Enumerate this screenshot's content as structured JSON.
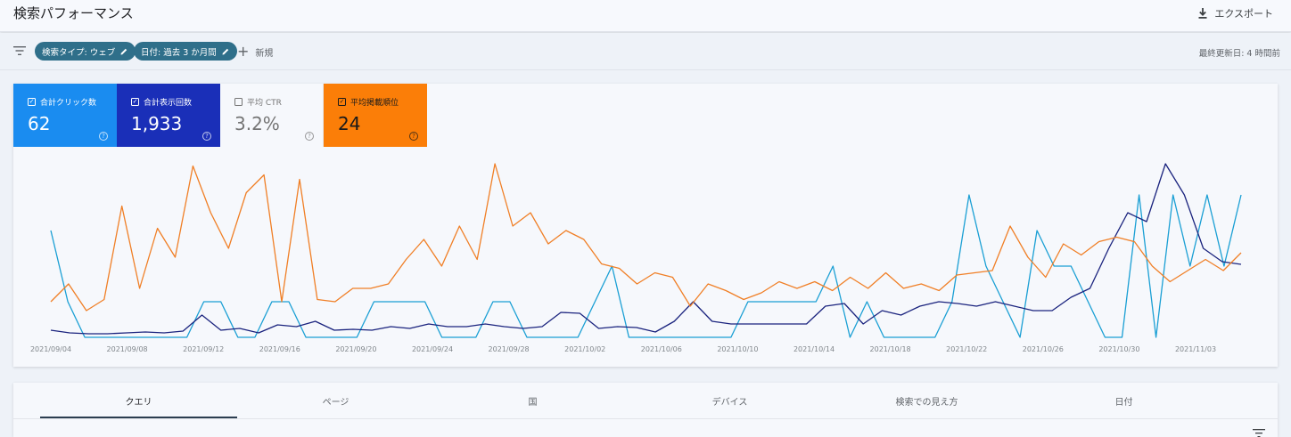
{
  "header": {
    "title": "検索パフォーマンス",
    "export_label": "エクスポート"
  },
  "filters": {
    "type_chip": "検索タイプ: ウェブ",
    "date_chip": "日付: 過去 3 か月間",
    "new_label": "新規",
    "last_updated": "最終更新日: 4 時間前"
  },
  "metrics": [
    {
      "label": "合計クリック数",
      "value": "62",
      "checked": true,
      "color": "#1a8cf0"
    },
    {
      "label": "合計表示回数",
      "value": "1,933",
      "checked": true,
      "color": "#1a2fb8"
    },
    {
      "label": "平均 CTR",
      "value": "3.2%",
      "checked": false,
      "color": "#757575"
    },
    {
      "label": "平均掲載順位",
      "value": "24",
      "checked": true,
      "color": "#fb7e08"
    }
  ],
  "chart_data": {
    "type": "line",
    "x_ticks": [
      "2021/09/04",
      "2021/09/08",
      "2021/09/12",
      "2021/09/16",
      "2021/09/20",
      "2021/09/24",
      "2021/09/28",
      "2021/10/02",
      "2021/10/06",
      "2021/10/10",
      "2021/10/14",
      "2021/10/18",
      "2021/10/22",
      "2021/10/26",
      "2021/10/30",
      "2021/11/03"
    ],
    "series": [
      {
        "color": "#1a9fd4",
        "scale_max": 5,
        "values": [
          3,
          1,
          0,
          0,
          0,
          0,
          0,
          0,
          0,
          1,
          1,
          0,
          0,
          1,
          1,
          0,
          0,
          0,
          0,
          1,
          1,
          1,
          1,
          0,
          0,
          0,
          1,
          1,
          0,
          0,
          0,
          0,
          1,
          2,
          0,
          0,
          0,
          0,
          0,
          0,
          0,
          1,
          1,
          1,
          1,
          1,
          2,
          0,
          1,
          0,
          0,
          0,
          0,
          1,
          4,
          2,
          1,
          0,
          3,
          2,
          2,
          1,
          0,
          0,
          4,
          0,
          4,
          2,
          4,
          2,
          4
        ]
      },
      {
        "color": "#1a237e",
        "scale_max": 200,
        "values": [
          8,
          5,
          4,
          4,
          5,
          6,
          5,
          7,
          25,
          8,
          10,
          5,
          14,
          12,
          18,
          8,
          9,
          8,
          12,
          10,
          15,
          12,
          12,
          15,
          12,
          10,
          12,
          28,
          27,
          10,
          12,
          11,
          6,
          18,
          40,
          18,
          15,
          15,
          15,
          15,
          15,
          35,
          38,
          15,
          30,
          25,
          35,
          40,
          38,
          35,
          40,
          35,
          30,
          30,
          45,
          55,
          100,
          140,
          130,
          195,
          160,
          100,
          85,
          82
        ]
      },
      {
        "color": "#f07f26",
        "scale_max": 80,
        "values": [
          16,
          24,
          12,
          17,
          59,
          22,
          49,
          36,
          77,
          56,
          40,
          65,
          73,
          16,
          71,
          17,
          16,
          22,
          22,
          24,
          35,
          44,
          32,
          50,
          35,
          78,
          50,
          56,
          42,
          48,
          44,
          33,
          31,
          24,
          29,
          27,
          14,
          24,
          21,
          17,
          20,
          25,
          22,
          25,
          21,
          27,
          22,
          29,
          22,
          24,
          21,
          28,
          29,
          30,
          50,
          36,
          27,
          42,
          37,
          43,
          45,
          43,
          32,
          25,
          30,
          35,
          30,
          38
        ]
      }
    ]
  },
  "tabs": [
    "クエリ",
    "ページ",
    "国",
    "デバイス",
    "検索での見え方",
    "日付"
  ]
}
